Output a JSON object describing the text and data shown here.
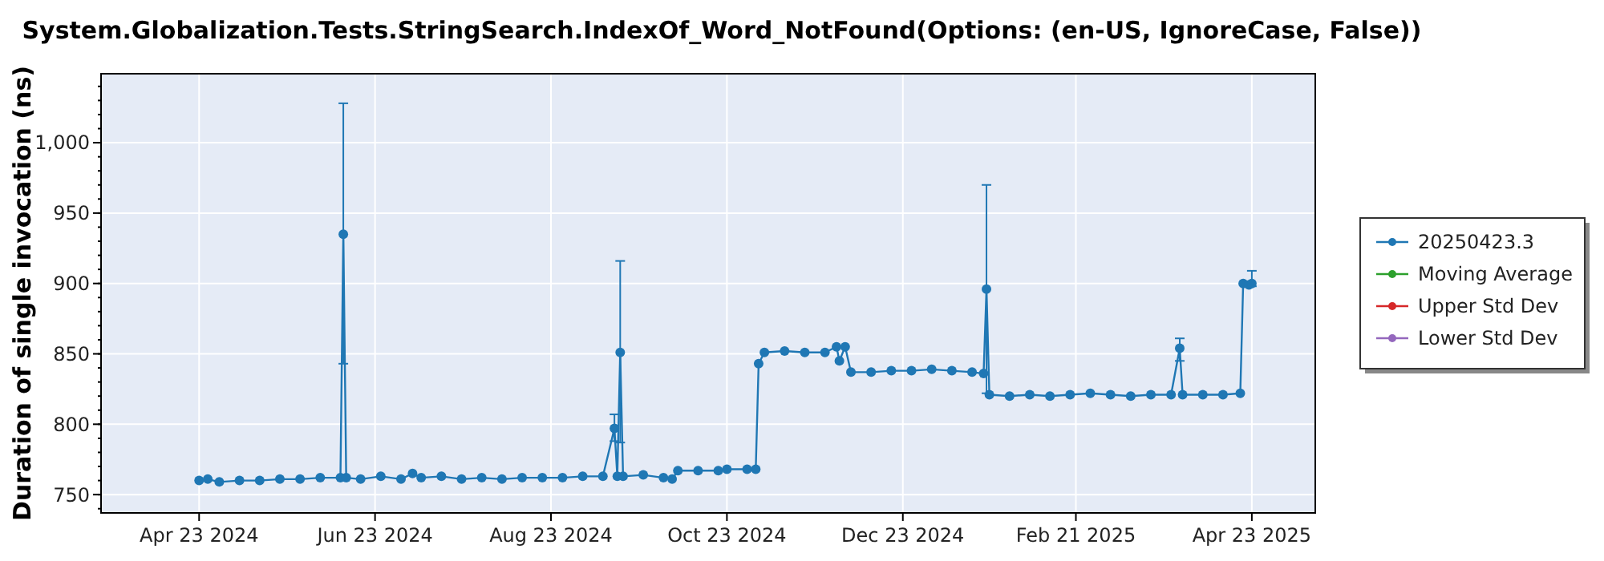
{
  "chart_data": {
    "type": "line",
    "title": "System.Globalization.Tests.StringSearch.IndexOf_Word_NotFound(Options: (en-US, IgnoreCase, False))",
    "ylabel": "Duration of single invocation (ns)",
    "xlim": [
      "2024-03-20",
      "2025-05-15"
    ],
    "xticks": [
      {
        "value": "2024-04-23",
        "label": "Apr 23 2024"
      },
      {
        "value": "2024-06-23",
        "label": "Jun 23 2024"
      },
      {
        "value": "2024-08-23",
        "label": "Aug 23 2024"
      },
      {
        "value": "2024-10-23",
        "label": "Oct 23 2024"
      },
      {
        "value": "2024-12-23",
        "label": "Dec 23 2024"
      },
      {
        "value": "2025-02-21",
        "label": "Feb 21 2025"
      },
      {
        "value": "2025-04-23",
        "label": "Apr 23 2025"
      }
    ],
    "ylim": [
      737,
      1049
    ],
    "yticks": [
      {
        "value": 750,
        "label": "750"
      },
      {
        "value": 800,
        "label": "800"
      },
      {
        "value": 850,
        "label": "850"
      },
      {
        "value": 900,
        "label": "900"
      },
      {
        "value": 950,
        "label": "950"
      },
      {
        "value": 1000,
        "label": "1,000"
      }
    ],
    "grid": true,
    "legend": "right",
    "marker": "circle",
    "line_style": "solid",
    "series": [
      {
        "name": "20250423.3",
        "color": "#1f77b4",
        "x": [
          "2024-04-23",
          "2024-04-26",
          "2024-04-30",
          "2024-05-07",
          "2024-05-14",
          "2024-05-21",
          "2024-05-28",
          "2024-06-04",
          "2024-06-11",
          "2024-06-12",
          "2024-06-13",
          "2024-06-18",
          "2024-06-25",
          "2024-07-02",
          "2024-07-06",
          "2024-07-09",
          "2024-07-16",
          "2024-07-23",
          "2024-07-30",
          "2024-08-06",
          "2024-08-13",
          "2024-08-20",
          "2024-08-27",
          "2024-09-03",
          "2024-09-10",
          "2024-09-14",
          "2024-09-15",
          "2024-09-16",
          "2024-09-17",
          "2024-09-24",
          "2024-10-01",
          "2024-10-04",
          "2024-10-06",
          "2024-10-13",
          "2024-10-20",
          "2024-10-23",
          "2024-10-30",
          "2024-11-02",
          "2024-11-03",
          "2024-11-05",
          "2024-11-12",
          "2024-11-19",
          "2024-11-26",
          "2024-11-30",
          "2024-12-01",
          "2024-12-03",
          "2024-12-05",
          "2024-12-12",
          "2024-12-19",
          "2024-12-26",
          "2025-01-02",
          "2025-01-09",
          "2025-01-16",
          "2025-01-20",
          "2025-01-21",
          "2025-01-22",
          "2025-01-29",
          "2025-02-05",
          "2025-02-12",
          "2025-02-19",
          "2025-02-26",
          "2025-03-05",
          "2025-03-12",
          "2025-03-19",
          "2025-03-26",
          "2025-03-29",
          "2025-03-30",
          "2025-04-06",
          "2025-04-13",
          "2025-04-19",
          "2025-04-20",
          "2025-04-22",
          "2025-04-23"
        ],
        "values": [
          760,
          761,
          759,
          760,
          760,
          761,
          761,
          762,
          762,
          935,
          762,
          761,
          763,
          761,
          765,
          762,
          763,
          761,
          762,
          761,
          762,
          762,
          762,
          763,
          763,
          797,
          763,
          851,
          763,
          764,
          762,
          761,
          767,
          767,
          767,
          768,
          768,
          768,
          843,
          851,
          852,
          851,
          851,
          855,
          845,
          855,
          837,
          837,
          838,
          838,
          839,
          838,
          837,
          836,
          896,
          821,
          820,
          821,
          820,
          821,
          822,
          821,
          820,
          821,
          821,
          854,
          821,
          821,
          821,
          822,
          900,
          899,
          900
        ],
        "errors": [
          null,
          null,
          null,
          null,
          null,
          null,
          null,
          null,
          null,
          [
            843,
            1028
          ],
          null,
          null,
          null,
          null,
          null,
          null,
          null,
          null,
          null,
          null,
          null,
          null,
          null,
          null,
          null,
          [
            788,
            807
          ],
          null,
          [
            787,
            916
          ],
          null,
          null,
          null,
          null,
          null,
          null,
          null,
          null,
          null,
          null,
          null,
          null,
          null,
          null,
          null,
          null,
          null,
          null,
          null,
          null,
          null,
          null,
          null,
          null,
          null,
          null,
          [
            822,
            970
          ],
          null,
          null,
          null,
          null,
          null,
          null,
          null,
          null,
          null,
          null,
          [
            845,
            861
          ],
          null,
          null,
          null,
          null,
          null,
          null,
          [
            898,
            909
          ]
        ]
      },
      {
        "name": "Moving Average",
        "color": "#2ca02c"
      },
      {
        "name": "Upper Std Dev",
        "color": "#d62728"
      },
      {
        "name": "Lower Std Dev",
        "color": "#9467bd"
      }
    ]
  }
}
